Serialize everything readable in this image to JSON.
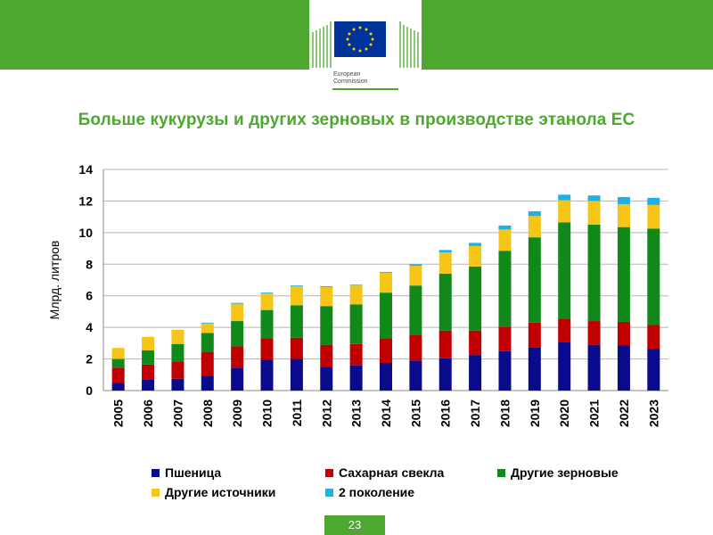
{
  "header": {
    "logo_line1": "European",
    "logo_line2": "Commission"
  },
  "slide": {
    "title": "Больше кукурузы и других зерновых в производстве этанола ЕС",
    "page_number": "23"
  },
  "colors": {
    "brand_green": "#4ea72e",
    "eu_blue": "#003399",
    "eu_star": "#ffcc00"
  },
  "chart_data": {
    "type": "bar",
    "stacked": true,
    "title": "",
    "xlabel": "",
    "ylabel": "Млрд. литров",
    "ylim": [
      0,
      14
    ],
    "yticks": [
      0,
      2,
      4,
      6,
      8,
      10,
      12,
      14
    ],
    "grid": true,
    "legend_position": "bottom",
    "categories": [
      "2005",
      "2006",
      "2007",
      "2008",
      "2009",
      "2010",
      "2011",
      "2012",
      "2013",
      "2014",
      "2015",
      "2016",
      "2017",
      "2018",
      "2019",
      "2020",
      "2021",
      "2022",
      "2023"
    ],
    "series": [
      {
        "name": "Пшеница",
        "color": "#0a0a8c",
        "values": [
          0.5,
          0.7,
          0.75,
          0.95,
          1.45,
          1.95,
          2.0,
          1.5,
          1.6,
          1.75,
          1.9,
          2.05,
          2.25,
          2.5,
          2.75,
          3.05,
          2.9,
          2.85,
          2.65
        ]
      },
      {
        "name": "Сахарная свекла",
        "color": "#c00000",
        "values": [
          0.95,
          0.95,
          1.1,
          1.5,
          1.35,
          1.35,
          1.35,
          1.4,
          1.35,
          1.55,
          1.6,
          1.75,
          1.55,
          1.55,
          1.55,
          1.5,
          1.5,
          1.5,
          1.5
        ]
      },
      {
        "name": "Другие зерновые",
        "color": "#11891a",
        "values": [
          0.55,
          0.9,
          1.1,
          1.2,
          1.6,
          1.8,
          2.05,
          2.45,
          2.5,
          2.9,
          3.15,
          3.6,
          4.05,
          4.8,
          5.4,
          6.1,
          6.1,
          6.0,
          6.1
        ]
      },
      {
        "name": "Другие источники",
        "color": "#f5c518",
        "values": [
          0.7,
          0.85,
          0.9,
          0.6,
          1.1,
          1.05,
          1.2,
          1.2,
          1.2,
          1.25,
          1.25,
          1.35,
          1.3,
          1.35,
          1.35,
          1.4,
          1.5,
          1.45,
          1.5
        ]
      },
      {
        "name": "2 поколение",
        "color": "#1fb0e8",
        "values": [
          0.0,
          0.0,
          0.0,
          0.05,
          0.05,
          0.05,
          0.05,
          0.05,
          0.05,
          0.05,
          0.1,
          0.15,
          0.2,
          0.25,
          0.3,
          0.35,
          0.35,
          0.45,
          0.45
        ]
      }
    ]
  }
}
